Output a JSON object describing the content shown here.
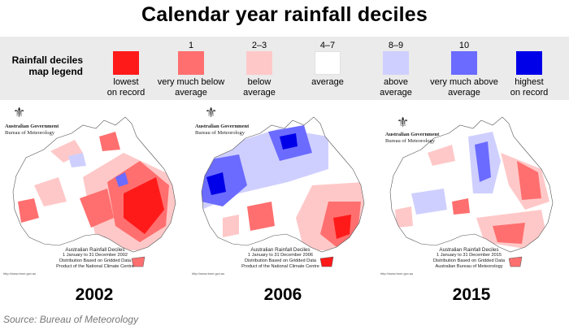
{
  "title": "Calendar year rainfall deciles",
  "legend": {
    "title_line1": "Rainfall deciles",
    "title_line2": "map legend",
    "items": [
      {
        "range": "",
        "label1": "lowest",
        "label2": "on record",
        "color": "#ff1a1a"
      },
      {
        "range": "1",
        "label1": "very much below",
        "label2": "average",
        "color": "#ff6f6f"
      },
      {
        "range": "2–3",
        "label1": "below",
        "label2": "average",
        "color": "#ffc8c8"
      },
      {
        "range": "4–7",
        "label1": "average",
        "label2": "",
        "color": "#ffffff"
      },
      {
        "range": "8–9",
        "label1": "above",
        "label2": "average",
        "color": "#cfcfff"
      },
      {
        "range": "10",
        "label1": "very much above",
        "label2": "average",
        "color": "#6b6bff"
      },
      {
        "range": "",
        "label1": "highest",
        "label2": "on record",
        "color": "#0000e8"
      }
    ]
  },
  "maps": [
    {
      "year": "2002",
      "agency_line1": "Australian Government",
      "agency_line2": "Bureau of Meteorology",
      "caption_title": "Australian Rainfall Deciles",
      "caption_period": "1 January to 31 December 2002",
      "caption_line3": "Distribution Based on Gridded Data",
      "caption_line4": "Product of the National Climate Centre",
      "url": "http://www.bom.gov.au"
    },
    {
      "year": "2006",
      "agency_line1": "Australian Government",
      "agency_line2": "Bureau of Meteorology",
      "caption_title": "Australian Rainfall Deciles",
      "caption_period": "1 January to 31 December 2006",
      "caption_line3": "Distribution Based on Gridded Data",
      "caption_line4": "Product of the National Climate Centre",
      "url": "http://www.bom.gov.au"
    },
    {
      "year": "2015",
      "agency_line1": "Australian Government",
      "agency_line2": "Bureau of Meteorology",
      "caption_title": "Australian Rainfall Deciles",
      "caption_period": "1 January to 31 December 2015",
      "caption_line3": "Distribution Based on Gridded Data",
      "caption_line4": "Australian Bureau of Meteorology",
      "url": "http://www.bom.gov.au"
    }
  ],
  "source": "Source: Bureau of Meteorology"
}
